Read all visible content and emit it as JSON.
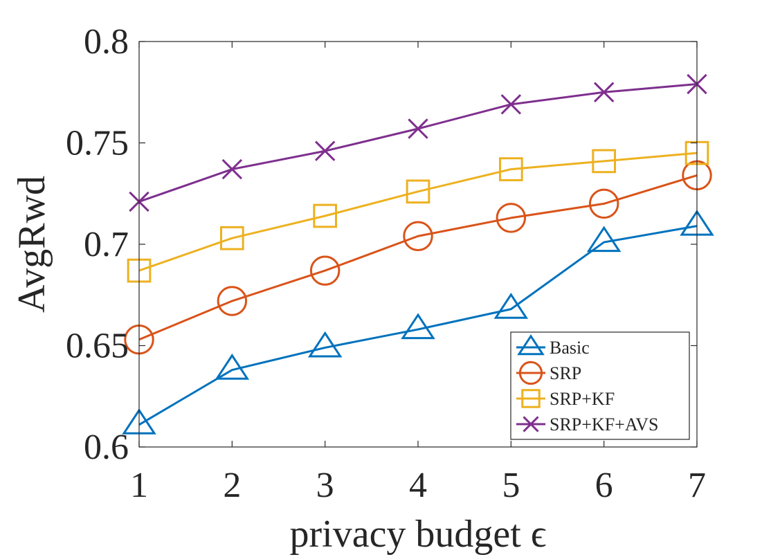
{
  "chart_data": {
    "type": "line",
    "title": "",
    "xlabel": "privacy budget ϵ",
    "ylabel": "AvgRwd",
    "xlim": [
      1,
      7
    ],
    "ylim": [
      0.6,
      0.8
    ],
    "xticks": [
      1,
      2,
      3,
      4,
      5,
      6,
      7
    ],
    "yticks": [
      0.6,
      0.65,
      0.7,
      0.75,
      0.8
    ],
    "ytick_labels": [
      "0.6",
      "0.65",
      "0.7",
      "0.75",
      "0.8"
    ],
    "grid": false,
    "legend_position": "bottom-right",
    "x": [
      1,
      2,
      3,
      4,
      5,
      6,
      7
    ],
    "series": [
      {
        "name": "Basic",
        "marker": "triangle",
        "color": "#0072BD",
        "values": [
          0.611,
          0.638,
          0.649,
          0.658,
          0.668,
          0.701,
          0.709
        ]
      },
      {
        "name": "SRP",
        "marker": "circle",
        "color": "#D95319",
        "values": [
          0.653,
          0.672,
          0.687,
          0.704,
          0.713,
          0.72,
          0.734
        ]
      },
      {
        "name": "SRP+KF",
        "marker": "square",
        "color": "#EDB120",
        "values": [
          0.687,
          0.703,
          0.714,
          0.726,
          0.737,
          0.741,
          0.745
        ]
      },
      {
        "name": "SRP+KF+AVS",
        "marker": "x",
        "color": "#7E2F8E",
        "values": [
          0.721,
          0.737,
          0.746,
          0.757,
          0.769,
          0.775,
          0.779
        ]
      }
    ]
  }
}
